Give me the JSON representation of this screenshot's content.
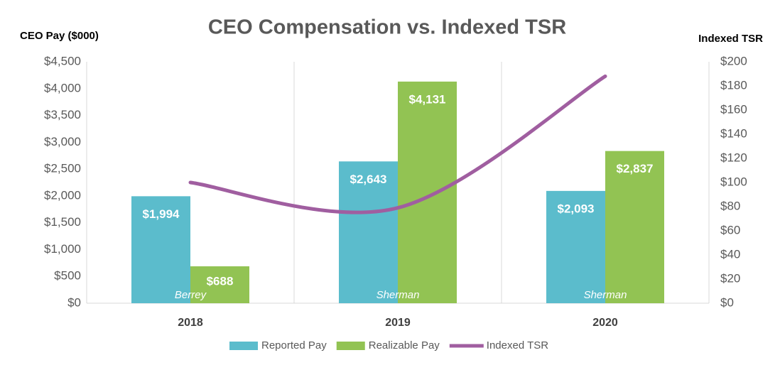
{
  "chart_data": {
    "type": "bar",
    "title": "CEO Compensation vs. Indexed TSR",
    "y_axis_label": "CEO Pay ($000)",
    "y2_axis_label": "Indexed TSR",
    "categories": [
      "2018",
      "2019",
      "2020"
    ],
    "ceo_names": [
      "Berrey",
      "Sherman",
      "Sherman"
    ],
    "series": [
      {
        "name": "Reported Pay",
        "color": "#5bbccc",
        "type": "bar",
        "values": [
          1994,
          2643,
          2093
        ],
        "value_labels": [
          "$1,994",
          "$2,643",
          "$2,093"
        ]
      },
      {
        "name": "Realizable Pay",
        "color": "#92c353",
        "type": "bar",
        "values": [
          688,
          4131,
          2837
        ],
        "value_labels": [
          "$688",
          "$4,131",
          "$2,837"
        ]
      },
      {
        "name": "Indexed TSR",
        "color": "#a05ea0",
        "type": "line",
        "axis": "y2",
        "values": [
          100,
          79,
          188
        ]
      }
    ],
    "ylim": [
      0,
      4500
    ],
    "yticks": [
      {
        "value": 0,
        "label": "$0"
      },
      {
        "value": 500,
        "label": "$500"
      },
      {
        "value": 1000,
        "label": "$1,000"
      },
      {
        "value": 1500,
        "label": "$1,500"
      },
      {
        "value": 2000,
        "label": "$2,000"
      },
      {
        "value": 2500,
        "label": "$2,500"
      },
      {
        "value": 3000,
        "label": "$3,000"
      },
      {
        "value": 3500,
        "label": "$3,500"
      },
      {
        "value": 4000,
        "label": "$4,000"
      },
      {
        "value": 4500,
        "label": "$4,500"
      }
    ],
    "y2lim": [
      0,
      200
    ],
    "y2ticks": [
      {
        "value": 0,
        "label": "$0"
      },
      {
        "value": 20,
        "label": "$20"
      },
      {
        "value": 40,
        "label": "$40"
      },
      {
        "value": 60,
        "label": "$60"
      },
      {
        "value": 80,
        "label": "$80"
      },
      {
        "value": 100,
        "label": "$100"
      },
      {
        "value": 120,
        "label": "$120"
      },
      {
        "value": 140,
        "label": "$140"
      },
      {
        "value": 160,
        "label": "$160"
      },
      {
        "value": 180,
        "label": "$180"
      },
      {
        "value": 200,
        "label": "$200"
      }
    ],
    "grid": false,
    "legend": "bottom"
  }
}
